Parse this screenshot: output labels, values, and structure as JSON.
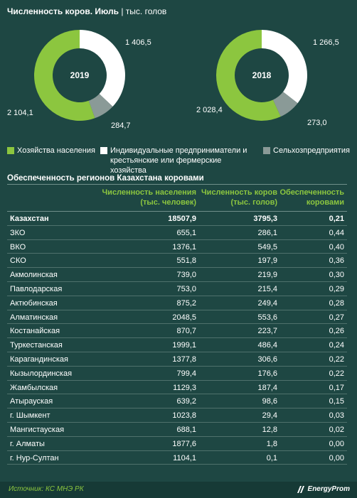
{
  "header": {
    "title_bold": "Численность коров. Июль",
    "title_sub": "| тыс. голов"
  },
  "colors": {
    "households": "#8cc63f",
    "entrepreneurs": "#ffffff",
    "agri": "#8a9a97",
    "background": "#1e4743",
    "accent": "#8cc63f"
  },
  "chart_data": [
    {
      "type": "pie",
      "center_label": "2019",
      "slices": [
        {
          "legend_index": 0,
          "value": 2104.1,
          "label": "2 104,1"
        },
        {
          "legend_index": 1,
          "value": 1406.5,
          "label": "1 406,5"
        },
        {
          "legend_index": 2,
          "value": 284.7,
          "label": "284,7"
        }
      ]
    },
    {
      "type": "pie",
      "center_label": "2018",
      "slices": [
        {
          "legend_index": 0,
          "value": 2028.4,
          "label": "2 028,4"
        },
        {
          "legend_index": 1,
          "value": 1266.5,
          "label": "1 266,5"
        },
        {
          "legend_index": 2,
          "value": 273.0,
          "label": "273,0"
        }
      ]
    },
    {
      "type": "table",
      "title": "Обеспеченность регионов Казахстана коровами",
      "columns": [
        "",
        "Численность населения (тыс. человек)",
        "Численность коров (тыс. голов)",
        "Обеспеченность коровами"
      ],
      "rows": [
        {
          "region": "Казахстан",
          "population": "18507,9",
          "cows": "3795,3",
          "ratio": "0,21"
        },
        {
          "region": "ЗКО",
          "population": "655,1",
          "cows": "286,1",
          "ratio": "0,44"
        },
        {
          "region": "ВКО",
          "population": "1376,1",
          "cows": "549,5",
          "ratio": "0,40"
        },
        {
          "region": "СКО",
          "population": "551,8",
          "cows": "197,9",
          "ratio": "0,36"
        },
        {
          "region": "Акмолинская",
          "population": "739,0",
          "cows": "219,9",
          "ratio": "0,30"
        },
        {
          "region": "Павлодарская",
          "population": "753,0",
          "cows": "215,4",
          "ratio": "0,29"
        },
        {
          "region": "Актюбинская",
          "population": "875,2",
          "cows": "249,4",
          "ratio": "0,28"
        },
        {
          "region": "Алматинская",
          "population": "2048,5",
          "cows": "553,6",
          "ratio": "0,27"
        },
        {
          "region": "Костанайская",
          "population": "870,7",
          "cows": "223,7",
          "ratio": "0,26"
        },
        {
          "region": "Туркестанская",
          "population": "1999,1",
          "cows": "486,4",
          "ratio": "0,24"
        },
        {
          "region": "Карагандинская",
          "population": "1377,8",
          "cows": "306,6",
          "ratio": "0,22"
        },
        {
          "region": "Кызылординская",
          "population": "799,4",
          "cows": "176,6",
          "ratio": "0,22"
        },
        {
          "region": "Жамбылская",
          "population": "1129,3",
          "cows": "187,4",
          "ratio": "0,17"
        },
        {
          "region": "Атырауская",
          "population": "639,2",
          "cows": "98,6",
          "ratio": "0,15"
        },
        {
          "region": "г. Шымкент",
          "population": "1023,8",
          "cows": "29,4",
          "ratio": "0,03"
        },
        {
          "region": "Мангистауская",
          "population": "688,1",
          "cows": "12,8",
          "ratio": "0,02"
        },
        {
          "region": "г. Алматы",
          "population": "1877,6",
          "cows": "1,8",
          "ratio": "0,00"
        },
        {
          "region": "г. Нур-Султан",
          "population": "1104,1",
          "cows": "0,1",
          "ratio": "0,00"
        }
      ]
    }
  ],
  "legend": [
    {
      "label": "Хозяйства населения",
      "color": "#8cc63f"
    },
    {
      "label": "Индивидуальные предприниматели и крестьянские или фермерские хозяйства",
      "color": "#ffffff"
    },
    {
      "label": "Сельхозпредприятия",
      "color": "#8a9a97"
    }
  ],
  "table_header": {
    "population": [
      "Численность населения",
      "(тыс. человек)"
    ],
    "cows": [
      "Численность коров",
      "(тыс. голов)"
    ],
    "ratio": [
      "Обеспеченность",
      "коровами"
    ]
  },
  "footer": {
    "source": "Источник: КС МНЭ РК",
    "logo_text": "EnergyProm",
    "logo_icon": "energyprom-logo-icon"
  }
}
